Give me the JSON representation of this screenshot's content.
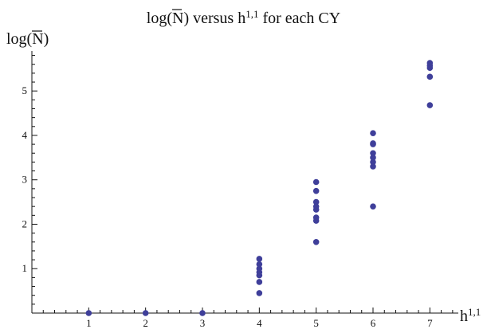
{
  "chart_data": {
    "type": "scatter",
    "title": {
      "prefix": "log(",
      "symbol": "N",
      "middle": ") versus h",
      "superscript": "1,1",
      "suffix": " for each CY"
    },
    "xlabel": {
      "base": "h",
      "superscript": "1,1"
    },
    "ylabel": {
      "prefix": "log(",
      "symbol": "N",
      "suffix": ")"
    },
    "xlim": [
      0,
      7.5
    ],
    "ylim": [
      0,
      5.9
    ],
    "x_ticks": [
      1,
      2,
      3,
      4,
      5,
      6,
      7
    ],
    "y_ticks": [
      1,
      2,
      3,
      4,
      5
    ],
    "grid": false,
    "legend": "none",
    "marker_color": "#3f3f9a",
    "series": [
      {
        "points": [
          [
            1,
            0.0
          ],
          [
            2,
            0.0
          ],
          [
            3,
            0.0
          ],
          [
            4,
            0.45
          ],
          [
            4,
            0.7
          ],
          [
            4,
            0.85
          ],
          [
            4,
            0.92
          ],
          [
            4,
            1.0
          ],
          [
            4,
            1.1
          ],
          [
            4,
            1.22
          ],
          [
            5,
            1.6
          ],
          [
            5,
            2.08
          ],
          [
            5,
            2.15
          ],
          [
            5,
            2.33
          ],
          [
            5,
            2.4
          ],
          [
            5,
            2.5
          ],
          [
            5,
            2.75
          ],
          [
            5,
            2.95
          ],
          [
            6,
            2.4
          ],
          [
            6,
            3.3
          ],
          [
            6,
            3.4
          ],
          [
            6,
            3.5
          ],
          [
            6,
            3.6
          ],
          [
            6,
            3.8
          ],
          [
            6,
            3.82
          ],
          [
            6,
            4.05
          ],
          [
            7,
            4.68
          ],
          [
            7,
            5.32
          ],
          [
            7,
            5.52
          ],
          [
            7,
            5.57
          ],
          [
            7,
            5.63
          ]
        ]
      }
    ]
  }
}
